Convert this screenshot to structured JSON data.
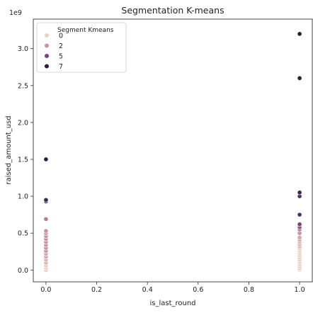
{
  "chart_data": {
    "type": "scatter",
    "title": "Segmentation K-means",
    "xlabel": "is_last_round",
    "ylabel": "raised_amount_usd",
    "y_offset_label": "1e9",
    "xlim": [
      -0.05,
      1.05
    ],
    "ylim": [
      -0.16,
      3.4
    ],
    "xticks": [
      0.0,
      0.2,
      0.4,
      0.6,
      0.8,
      1.0
    ],
    "xtick_labels": [
      "0.0",
      "0.2",
      "0.4",
      "0.6",
      "0.8",
      "1.0"
    ],
    "yticks": [
      0.0,
      0.5,
      1.0,
      1.5,
      2.0,
      2.5,
      3.0
    ],
    "ytick_labels": [
      "0.0",
      "0.5",
      "1.0",
      "1.5",
      "2.0",
      "2.5",
      "3.0"
    ],
    "grid": false,
    "legend": {
      "title": "Segment Kmeans",
      "placement": "top-left",
      "entries": [
        {
          "label": "0",
          "color": "#ead1c4"
        },
        {
          "label": "2",
          "color": "#c893a6"
        },
        {
          "label": "5",
          "color": "#764873"
        },
        {
          "label": "7",
          "color": "#2d1e3e"
        }
      ]
    },
    "points": [
      {
        "x": 0.0,
        "y": 0.0,
        "color": "#ead1c4"
      },
      {
        "x": 0.0,
        "y": 0.03,
        "color": "#ead1c4"
      },
      {
        "x": 0.0,
        "y": 0.06,
        "color": "#ead1c4"
      },
      {
        "x": 0.0,
        "y": 0.1,
        "color": "#dcb7b6"
      },
      {
        "x": 0.0,
        "y": 0.14,
        "color": "#dcb7b6"
      },
      {
        "x": 0.0,
        "y": 0.18,
        "color": "#d3a9b0"
      },
      {
        "x": 0.0,
        "y": 0.22,
        "color": "#d3a9b0"
      },
      {
        "x": 0.0,
        "y": 0.26,
        "color": "#c893a6"
      },
      {
        "x": 0.0,
        "y": 0.3,
        "color": "#c893a6"
      },
      {
        "x": 0.0,
        "y": 0.34,
        "color": "#c893a6"
      },
      {
        "x": 0.0,
        "y": 0.38,
        "color": "#c893a6"
      },
      {
        "x": 0.0,
        "y": 0.42,
        "color": "#c893a6"
      },
      {
        "x": 0.0,
        "y": 0.46,
        "color": "#c893a6"
      },
      {
        "x": 0.0,
        "y": 0.5,
        "color": "#c893a6"
      },
      {
        "x": 0.0,
        "y": 0.53,
        "color": "#c893a6"
      },
      {
        "x": 0.0,
        "y": 0.69,
        "color": "#b87b9a"
      },
      {
        "x": 0.0,
        "y": 0.93,
        "color": "#3c2850"
      },
      {
        "x": 0.0,
        "y": 0.95,
        "color": "#3c2850"
      },
      {
        "x": 0.0,
        "y": 1.5,
        "color": "#2d1e3e"
      },
      {
        "x": 1.0,
        "y": 0.0,
        "color": "#f0dfd6"
      },
      {
        "x": 1.0,
        "y": 0.02,
        "color": "#ead1c4"
      },
      {
        "x": 1.0,
        "y": 0.05,
        "color": "#ead1c4"
      },
      {
        "x": 1.0,
        "y": 0.08,
        "color": "#ead1c4"
      },
      {
        "x": 1.0,
        "y": 0.11,
        "color": "#ead1c4"
      },
      {
        "x": 1.0,
        "y": 0.14,
        "color": "#ead1c4"
      },
      {
        "x": 1.0,
        "y": 0.17,
        "color": "#ead1c4"
      },
      {
        "x": 1.0,
        "y": 0.2,
        "color": "#ead1c4"
      },
      {
        "x": 1.0,
        "y": 0.23,
        "color": "#ead1c4"
      },
      {
        "x": 1.0,
        "y": 0.26,
        "color": "#ead1c4"
      },
      {
        "x": 1.0,
        "y": 0.29,
        "color": "#ead1c4"
      },
      {
        "x": 1.0,
        "y": 0.32,
        "color": "#dcb7b6"
      },
      {
        "x": 1.0,
        "y": 0.35,
        "color": "#dcb7b6"
      },
      {
        "x": 1.0,
        "y": 0.38,
        "color": "#dcb7b6"
      },
      {
        "x": 1.0,
        "y": 0.41,
        "color": "#d3a9b0"
      },
      {
        "x": 1.0,
        "y": 0.44,
        "color": "#d3a9b0"
      },
      {
        "x": 1.0,
        "y": 0.5,
        "color": "#c893a6"
      },
      {
        "x": 1.0,
        "y": 0.55,
        "color": "#b87b9a"
      },
      {
        "x": 1.0,
        "y": 0.58,
        "color": "#8d5a87"
      },
      {
        "x": 1.0,
        "y": 0.62,
        "color": "#764873"
      },
      {
        "x": 1.0,
        "y": 0.75,
        "color": "#4f3265"
      },
      {
        "x": 1.0,
        "y": 1.0,
        "color": "#4f3265"
      },
      {
        "x": 1.0,
        "y": 1.05,
        "color": "#3c2850"
      },
      {
        "x": 1.0,
        "y": 2.6,
        "color": "#2d1e3e"
      },
      {
        "x": 1.0,
        "y": 3.2,
        "color": "#2d1e3e"
      }
    ]
  }
}
